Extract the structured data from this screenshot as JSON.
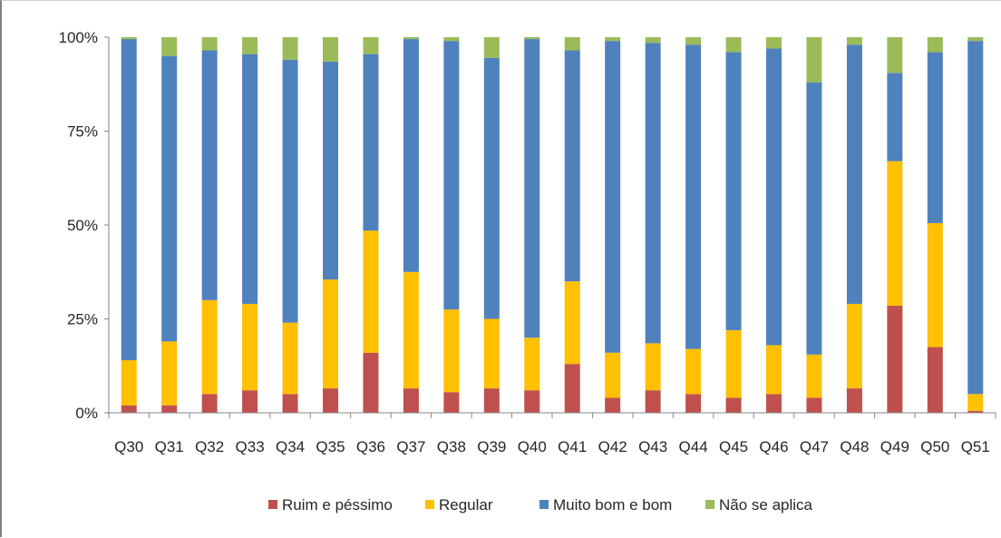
{
  "chart_data": {
    "type": "bar",
    "stacked": true,
    "percent": true,
    "categories": [
      "Q30",
      "Q31",
      "Q32",
      "Q33",
      "Q34",
      "Q35",
      "Q36",
      "Q37",
      "Q38",
      "Q39",
      "Q40",
      "Q41",
      "Q42",
      "Q43",
      "Q44",
      "Q45",
      "Q46",
      "Q47",
      "Q48",
      "Q49",
      "Q50",
      "Q51"
    ],
    "ylim": [
      0,
      100
    ],
    "yticks": [
      "0%",
      "25%",
      "50%",
      "75%",
      "100%"
    ],
    "ytick_values": [
      0,
      25,
      50,
      75,
      100
    ],
    "grid": false,
    "legend_position": "bottom",
    "series": [
      {
        "name": "Ruim e péssimo",
        "color": "#c0504d",
        "values": [
          2,
          2,
          5,
          6,
          5,
          6.5,
          16,
          6.5,
          5.5,
          6.5,
          6,
          13,
          4,
          6,
          5,
          4,
          5,
          4,
          6.5,
          28.5,
          17.5,
          0.5
        ]
      },
      {
        "name": "Regular",
        "color": "#ffc000",
        "values": [
          12,
          17,
          25,
          23,
          19,
          29,
          32.5,
          31,
          22,
          18.5,
          14,
          22,
          12,
          12.5,
          12,
          18,
          13,
          11.5,
          22.5,
          38.5,
          33,
          4.5
        ]
      },
      {
        "name": "Muito bom e bom",
        "color": "#4f81bd",
        "values": [
          85.5,
          76,
          66.5,
          66.5,
          70,
          58,
          47,
          62,
          71.5,
          69.5,
          79.5,
          61.5,
          83,
          80,
          81,
          74,
          79,
          72.5,
          69,
          23.5,
          45.5,
          94
        ]
      },
      {
        "name": "Não se aplica",
        "color": "#9bbb59",
        "values": [
          0.5,
          5,
          3.5,
          4.5,
          6,
          6.5,
          4.5,
          0.5,
          1,
          5.5,
          0.5,
          3.5,
          1,
          1.5,
          2,
          4,
          3,
          12,
          2,
          9.5,
          4,
          1
        ]
      }
    ]
  }
}
